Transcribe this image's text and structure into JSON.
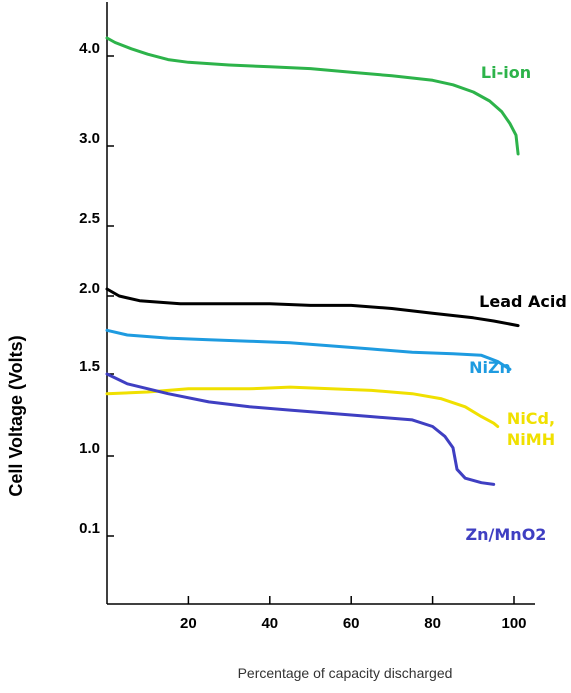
{
  "chart_data": {
    "type": "line",
    "xlabel": "Percentage of capacity discharged",
    "ylabel": "Cell Voltage (Volts)",
    "x_ticks": [
      20,
      40,
      60,
      80,
      100
    ],
    "y_ticks": [
      "0.1",
      "1.0",
      "1.5",
      "2.0",
      "2.5",
      "3.0",
      "4.0"
    ],
    "xlim": [
      0,
      105
    ],
    "grid": false,
    "series": [
      {
        "name": "Li-ion",
        "label_lines": [
          "Li-ion"
        ],
        "color": "#2db34a",
        "points": [
          [
            0,
            4.2
          ],
          [
            2,
            4.15
          ],
          [
            6,
            4.08
          ],
          [
            10,
            4.02
          ],
          [
            15,
            3.96
          ],
          [
            20,
            3.93
          ],
          [
            30,
            3.9
          ],
          [
            40,
            3.88
          ],
          [
            50,
            3.86
          ],
          [
            60,
            3.82
          ],
          [
            70,
            3.78
          ],
          [
            80,
            3.73
          ],
          [
            85,
            3.68
          ],
          [
            90,
            3.6
          ],
          [
            94,
            3.5
          ],
          [
            97,
            3.38
          ],
          [
            99,
            3.25
          ],
          [
            100.5,
            3.12
          ],
          [
            101,
            2.95
          ]
        ]
      },
      {
        "name": "Lead Acid",
        "label_lines": [
          "Lead Acid"
        ],
        "color": "#000000",
        "points": [
          [
            0,
            2.05
          ],
          [
            3,
            2.0
          ],
          [
            8,
            1.97
          ],
          [
            18,
            1.95
          ],
          [
            30,
            1.95
          ],
          [
            40,
            1.95
          ],
          [
            50,
            1.94
          ],
          [
            60,
            1.94
          ],
          [
            70,
            1.92
          ],
          [
            80,
            1.89
          ],
          [
            90,
            1.86
          ],
          [
            95,
            1.84
          ],
          [
            101,
            1.81
          ]
        ]
      },
      {
        "name": "NiZn",
        "label_lines": [
          "NiZn"
        ],
        "color": "#1e9be0",
        "points": [
          [
            0,
            1.78
          ],
          [
            5,
            1.75
          ],
          [
            15,
            1.73
          ],
          [
            25,
            1.72
          ],
          [
            35,
            1.71
          ],
          [
            45,
            1.7
          ],
          [
            55,
            1.68
          ],
          [
            65,
            1.66
          ],
          [
            75,
            1.64
          ],
          [
            85,
            1.63
          ],
          [
            92,
            1.62
          ],
          [
            96,
            1.58
          ],
          [
            99,
            1.53
          ]
        ]
      },
      {
        "name": "NiCd, NiMH",
        "label_lines": [
          "NiCd,",
          "NiMH"
        ],
        "color": "#f0e000",
        "points": [
          [
            0,
            1.38
          ],
          [
            10,
            1.39
          ],
          [
            20,
            1.41
          ],
          [
            35,
            1.41
          ],
          [
            45,
            1.42
          ],
          [
            55,
            1.41
          ],
          [
            65,
            1.4
          ],
          [
            75,
            1.38
          ],
          [
            82,
            1.35
          ],
          [
            88,
            1.3
          ],
          [
            92,
            1.24
          ],
          [
            95,
            1.2
          ],
          [
            96,
            1.18
          ]
        ]
      },
      {
        "name": "Zn/MnO2",
        "label_lines": [
          "Zn/MnO2"
        ],
        "color": "#3f3fc2",
        "points": [
          [
            0,
            1.5
          ],
          [
            5,
            1.44
          ],
          [
            15,
            1.38
          ],
          [
            25,
            1.33
          ],
          [
            35,
            1.3
          ],
          [
            45,
            1.28
          ],
          [
            55,
            1.26
          ],
          [
            65,
            1.24
          ],
          [
            75,
            1.22
          ],
          [
            80,
            1.18
          ],
          [
            83,
            1.12
          ],
          [
            85,
            1.05
          ],
          [
            86,
            0.85
          ],
          [
            88,
            0.75
          ],
          [
            92,
            0.7
          ],
          [
            95,
            0.68
          ]
        ]
      }
    ]
  }
}
